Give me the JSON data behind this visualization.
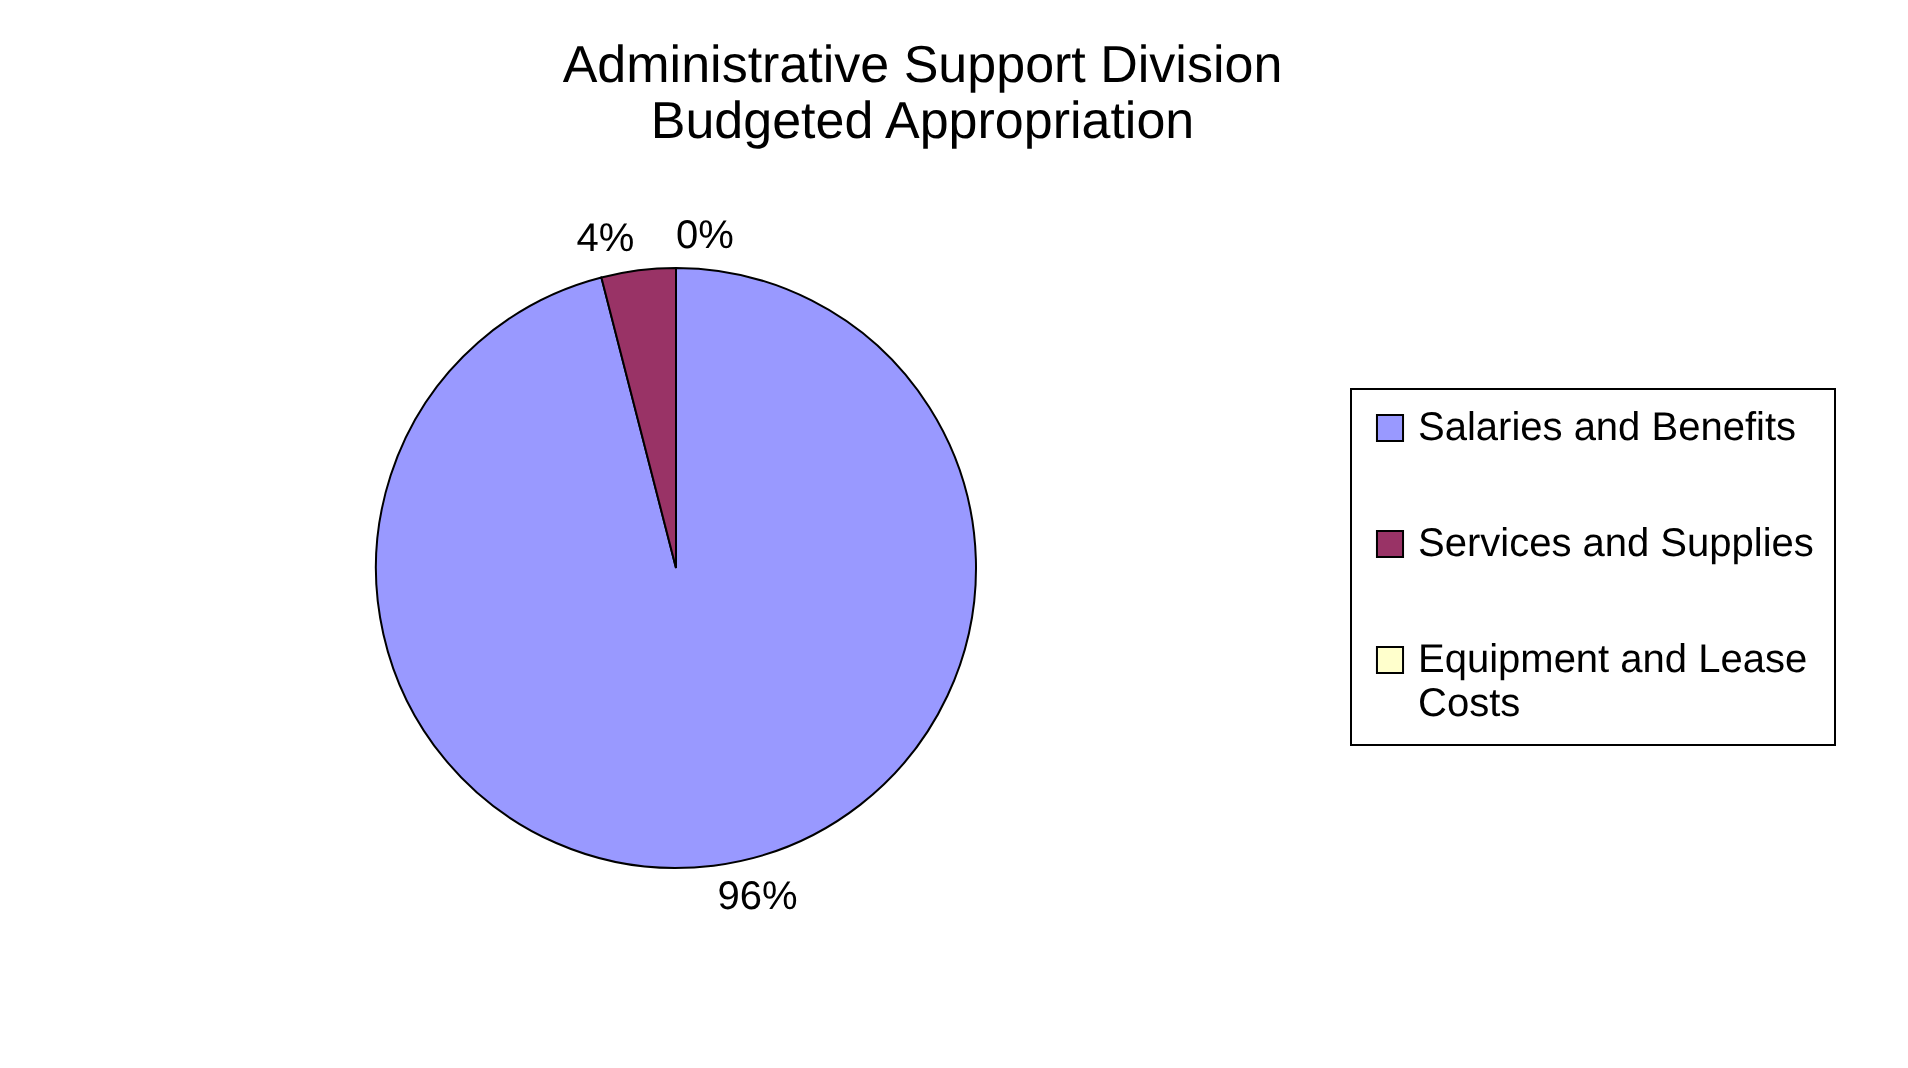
{
  "chart_data": {
    "type": "pie",
    "title": "Administrative Support Division\nBudgeted Appropriation",
    "categories": [
      "Salaries and Benefits",
      "Services and Supplies",
      "Equipment and Lease Costs"
    ],
    "values": [
      96,
      4,
      0
    ],
    "colors": [
      "#9999ff",
      "#993366",
      "#ffffcc"
    ],
    "value_labels": [
      "96%",
      "4%",
      "0%"
    ],
    "legend": "right"
  }
}
